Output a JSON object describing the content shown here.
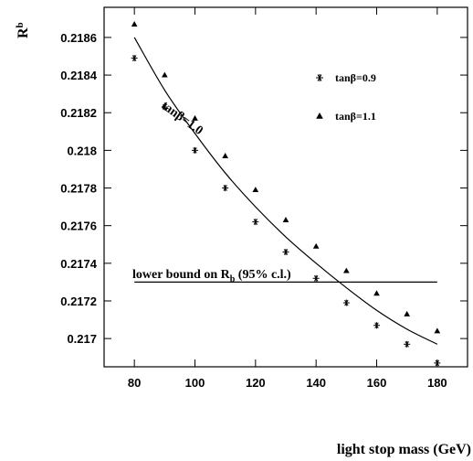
{
  "chart_data": {
    "type": "scatter",
    "xlabel": "light stop mass (GeV)",
    "ylabel": "R",
    "ylabel_sub": "b",
    "xlim": [
      70,
      190
    ],
    "ylim": [
      0.21685,
      0.21876
    ],
    "x_ticks": [
      80,
      100,
      120,
      140,
      160,
      180
    ],
    "y_ticks": [
      0.217,
      0.2172,
      0.2174,
      0.2176,
      0.2178,
      0.218,
      0.2182,
      0.2184,
      0.2186
    ],
    "y_tick_labels": [
      "0.217",
      "0.2172",
      "0.2174",
      "0.2176",
      "0.2178",
      "0.218",
      "0.2182",
      "0.2184",
      "0.2186"
    ],
    "x_tick_labels": [
      "80",
      "100",
      "120",
      "140",
      "160",
      "180"
    ],
    "legend_position": "top-right",
    "series": [
      {
        "name": "tanβ=0.9",
        "marker": "asterisk",
        "x": [
          80,
          90,
          100,
          110,
          120,
          130,
          140,
          150,
          160,
          170,
          180
        ],
        "y": [
          0.21849,
          0.21823,
          0.218,
          0.2178,
          0.21762,
          0.21746,
          0.21732,
          0.21719,
          0.21707,
          0.21697,
          0.21687
        ]
      },
      {
        "name": "tanβ=1.1",
        "marker": "triangle",
        "x": [
          80,
          90,
          100,
          110,
          120,
          130,
          140,
          150,
          160,
          170,
          180
        ],
        "y": [
          0.21867,
          0.2184,
          0.21817,
          0.21797,
          0.21779,
          0.21763,
          0.21749,
          0.21736,
          0.21724,
          0.21713,
          0.21704
        ]
      }
    ],
    "curve": {
      "label": "tanβ=1.0",
      "x": [
        80,
        90,
        100,
        110,
        120,
        130,
        140,
        150,
        160,
        170,
        180
      ],
      "y": [
        0.2186,
        0.21832,
        0.21809,
        0.21788,
        0.2177,
        0.21754,
        0.2174,
        0.21727,
        0.21715,
        0.21705,
        0.21697
      ]
    },
    "reference_line": {
      "label": "lower bound on R",
      "label_sub": "b",
      "label_suffix": " (95% c.l.)",
      "y": 0.2173,
      "x_range": [
        80,
        180
      ]
    }
  }
}
